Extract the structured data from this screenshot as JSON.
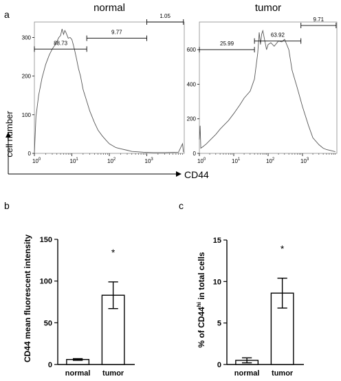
{
  "labels": {
    "panel_a": "a",
    "panel_b": "b",
    "panel_c": "c",
    "y_axis_a": "cell number",
    "x_axis_a": "CD44"
  },
  "chart_data": [
    {
      "type": "line",
      "title": "normal",
      "x_scale": "log",
      "xlim": [
        1,
        10000
      ],
      "ylim": [
        0,
        340
      ],
      "x_tick_labels": [
        "10^0",
        "10^1",
        "10^2",
        "10^3"
      ],
      "x_tick_values": [
        1,
        10,
        100,
        1000
      ],
      "y_ticks": [
        0,
        100,
        200,
        300
      ],
      "grid": false,
      "series": [
        {
          "x": [
            1,
            1.1,
            1.3,
            1.6,
            2,
            2.5,
            3,
            3.5,
            4,
            4.5,
            5,
            5.5,
            6,
            6.5,
            7,
            8,
            9,
            10,
            11,
            12,
            13,
            15,
            17,
            20,
            25,
            30,
            40,
            50,
            65,
            80,
            100,
            150,
            200,
            300,
            400,
            600,
            800,
            1500,
            3000,
            7000,
            9000,
            9500
          ],
          "y": [
            0,
            95,
            150,
            195,
            230,
            255,
            270,
            280,
            290,
            300,
            305,
            322,
            308,
            318,
            312,
            298,
            300,
            295,
            280,
            265,
            250,
            220,
            200,
            165,
            135,
            110,
            80,
            60,
            45,
            35,
            25,
            15,
            12,
            8,
            5,
            4,
            3,
            2,
            2,
            3,
            25,
            3
          ]
        }
      ],
      "gates": [
        {
          "label": "88.73",
          "x_start": 1,
          "x_end": 25,
          "y": 270
        },
        {
          "label": "9.77",
          "x_start": 25,
          "x_end": 1000,
          "y": 298
        },
        {
          "label": "1.05",
          "x_start": 1000,
          "x_end": 9500,
          "y": 340
        }
      ]
    },
    {
      "type": "line",
      "title": "tumor",
      "x_scale": "log",
      "xlim": [
        1,
        10000
      ],
      "ylim": [
        0,
        760
      ],
      "x_tick_labels": [
        "10^0",
        "10^1",
        "10^2",
        "10^3"
      ],
      "x_tick_values": [
        1,
        10,
        100,
        1000
      ],
      "y_ticks": [
        0,
        200,
        400,
        600
      ],
      "grid": false,
      "series": [
        {
          "x": [
            1,
            1.05,
            1.1,
            1.3,
            1.6,
            2,
            3,
            4,
            5,
            7,
            10,
            15,
            20,
            30,
            40,
            50,
            55,
            60,
            65,
            70,
            80,
            90,
            100,
            120,
            150,
            200,
            250,
            300,
            400,
            500,
            700,
            1000,
            1500,
            2000,
            3000,
            4000,
            5000,
            7000,
            9000
          ],
          "y": [
            80,
            160,
            30,
            40,
            55,
            75,
            110,
            140,
            160,
            190,
            230,
            280,
            320,
            360,
            430,
            580,
            700,
            630,
            690,
            710,
            650,
            600,
            630,
            640,
            620,
            650,
            645,
            660,
            600,
            480,
            380,
            270,
            160,
            90,
            50,
            30,
            22,
            15,
            10
          ]
        }
      ],
      "gates": [
        {
          "label": "25.99",
          "x_start": 1,
          "x_end": 40,
          "y": 600
        },
        {
          "label": "63.92",
          "x_start": 40,
          "x_end": 900,
          "y": 650
        },
        {
          "label": "9.71",
          "x_start": 900,
          "x_end": 9500,
          "y": 740
        }
      ]
    },
    {
      "type": "bar",
      "categories": [
        "normal",
        "tumor"
      ],
      "values": [
        6,
        83
      ],
      "errors": [
        1,
        16
      ],
      "ylabel": "CD44 mean fluorescent intensity",
      "ylim": [
        0,
        150
      ],
      "y_ticks": [
        0,
        50,
        100,
        150
      ],
      "annotations": [
        {
          "category": "tumor",
          "text": "*"
        }
      ],
      "grid": false
    },
    {
      "type": "bar",
      "categories": [
        "normal",
        "tumor"
      ],
      "values": [
        0.5,
        8.6
      ],
      "errors": [
        0.3,
        1.8
      ],
      "ylabel_main": "% of CD44",
      "ylabel_sup": "hi",
      "ylabel_tail": " in total cells",
      "ylim": [
        0,
        15
      ],
      "y_ticks": [
        0,
        5,
        10,
        15
      ],
      "annotations": [
        {
          "category": "tumor",
          "text": "*"
        }
      ],
      "grid": false
    }
  ]
}
